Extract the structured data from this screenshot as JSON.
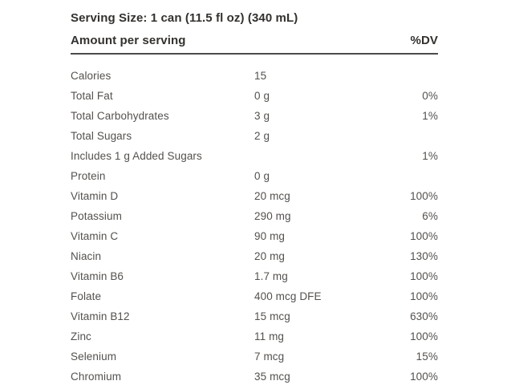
{
  "panel": {
    "serving_size": "Serving Size: 1 can (11.5 fl oz) (340 mL)",
    "header": {
      "amount_label": "Amount per serving",
      "dv_label": "%DV"
    },
    "rows": [
      {
        "label": "Calories",
        "amount": "15",
        "dv": ""
      },
      {
        "label": "Total Fat",
        "amount": "0 g",
        "dv": "0%"
      },
      {
        "label": "Total Carbohydrates",
        "amount": "3 g",
        "dv": "1%"
      },
      {
        "label": "Total Sugars",
        "amount": "2 g",
        "dv": ""
      },
      {
        "label": "Includes 1 g Added Sugars",
        "amount": "",
        "dv": "1%"
      },
      {
        "label": "Protein",
        "amount": "0 g",
        "dv": ""
      },
      {
        "label": "Vitamin D",
        "amount": "20 mcg",
        "dv": "100%"
      },
      {
        "label": "Potassium",
        "amount": "290 mg",
        "dv": "6%"
      },
      {
        "label": "Vitamin C",
        "amount": "90 mg",
        "dv": "100%"
      },
      {
        "label": "Niacin",
        "amount": "20 mg",
        "dv": "130%"
      },
      {
        "label": "Vitamin B6",
        "amount": "1.7 mg",
        "dv": "100%"
      },
      {
        "label": "Folate",
        "amount": "400 mcg DFE",
        "dv": "100%"
      },
      {
        "label": "Vitamin B12",
        "amount": "15 mcg",
        "dv": "630%"
      },
      {
        "label": "Zinc",
        "amount": "11 mg",
        "dv": "100%"
      },
      {
        "label": "Selenium",
        "amount": "7 mcg",
        "dv": "15%"
      },
      {
        "label": "Chromium",
        "amount": "35 mcg",
        "dv": "100%"
      }
    ],
    "colors": {
      "background": "#ffffff",
      "text_header": "#33312d",
      "text_row": "#54514d",
      "rule": "#4b4b4b"
    }
  }
}
